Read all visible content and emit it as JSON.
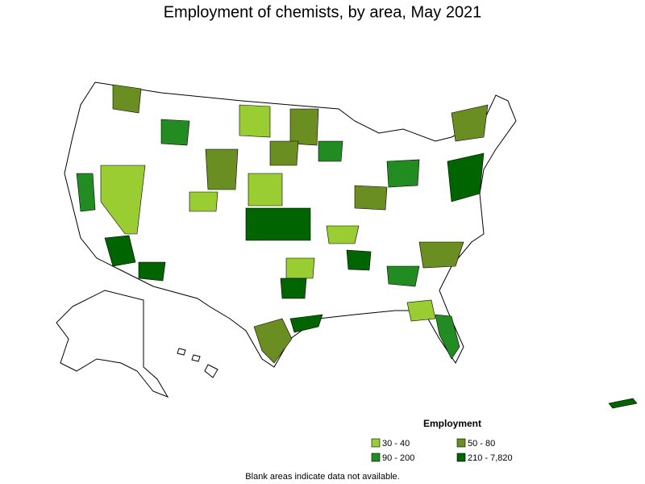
{
  "title": "Employment of chemists, by area, May 2021",
  "legend": {
    "title": "Employment",
    "items": [
      {
        "label": "30 - 40",
        "color": "#9acd32"
      },
      {
        "label": "50 - 80",
        "color": "#6b8e23"
      },
      {
        "label": "90 - 200",
        "color": "#228b22"
      },
      {
        "label": "210 - 7,820",
        "color": "#006400"
      }
    ]
  },
  "footnote": "Blank areas indicate data not available."
}
